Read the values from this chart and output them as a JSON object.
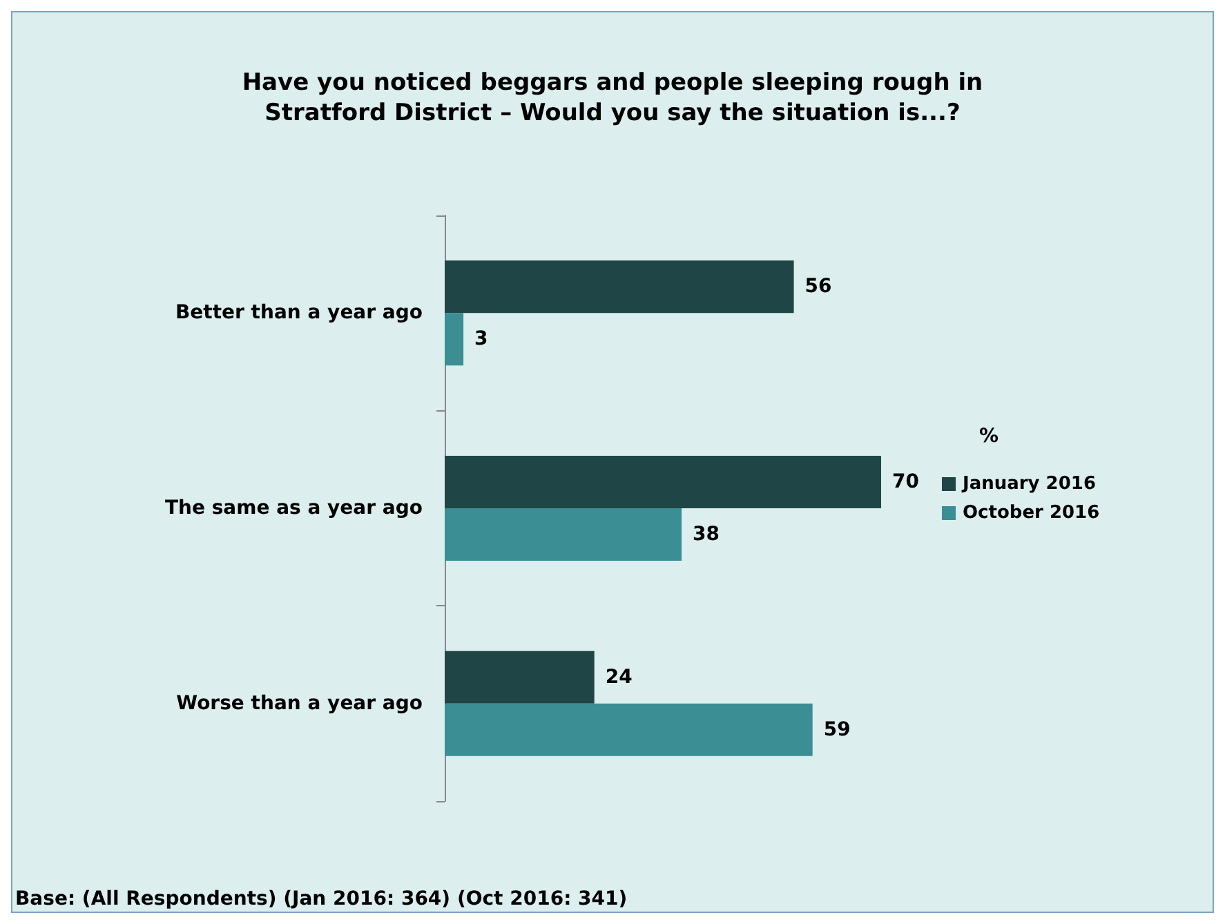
{
  "chart_data": {
    "type": "bar",
    "orientation": "horizontal",
    "title": "Have you noticed beggars and people sleeping rough in\nStratford District – Would you say the situation is...?",
    "categories": [
      "Better than a year ago",
      "The same as a year ago",
      "Worse than a year ago"
    ],
    "series": [
      {
        "name": "January 2016",
        "color": "#1f4547",
        "values": [
          56,
          70,
          24
        ]
      },
      {
        "name": "October 2016",
        "color": "#3a8e94",
        "values": [
          3,
          38,
          59
        ]
      }
    ],
    "data_labels": true,
    "legend": "right",
    "legend_title": "%",
    "annotations": [
      "Base: (All Respondents) (Jan 2016: 364) (Oct 2016: 341)"
    ]
  }
}
